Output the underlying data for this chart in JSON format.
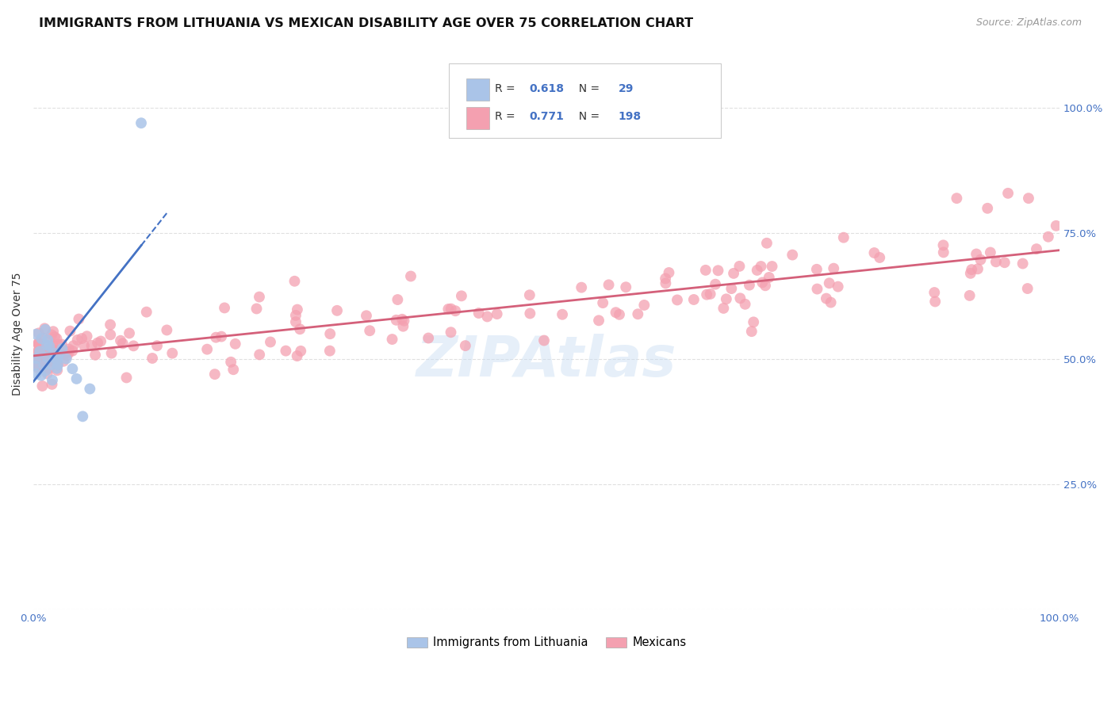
{
  "title": "IMMIGRANTS FROM LITHUANIA VS MEXICAN DISABILITY AGE OVER 75 CORRELATION CHART",
  "source": "Source: ZipAtlas.com",
  "ylabel": "Disability Age Over 75",
  "watermark": "ZIPAtlas",
  "legend_entries": [
    {
      "label": "Immigrants from Lithuania",
      "R": "0.618",
      "N": "29",
      "color": "#aac4e8"
    },
    {
      "label": "Mexicans",
      "R": "0.771",
      "N": "198",
      "color": "#f4a0b0"
    }
  ],
  "R_color": "#4472c4",
  "N_color": "#4472c4",
  "lithuania_scatter_color": "#aac4e8",
  "lithuania_line_color": "#4472c4",
  "mexican_scatter_color": "#f4a0b0",
  "mexican_line_color": "#d4607a",
  "background_color": "#ffffff",
  "grid_color": "#dddddd",
  "title_fontsize": 11.5,
  "xlim": [
    0.0,
    1.0
  ],
  "ylim": [
    0.0,
    1.1
  ],
  "yticks": [
    0.0,
    0.25,
    0.5,
    0.75,
    1.0
  ],
  "ytick_labels_right": [
    "",
    "25.0%",
    "50.0%",
    "75.0%",
    "100.0%"
  ],
  "xtick_labels": [
    "0.0%",
    "",
    "",
    "",
    "",
    "",
    "",
    "",
    "",
    "",
    "100.0%"
  ]
}
